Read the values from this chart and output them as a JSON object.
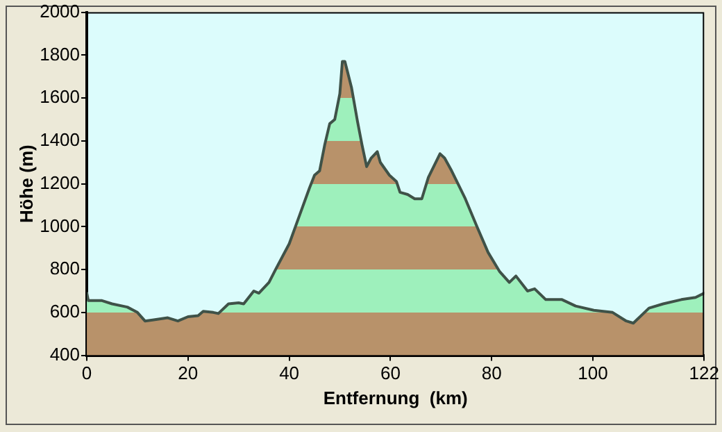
{
  "chart_data": {
    "type": "area",
    "xlabel": "Entfernung  (km)",
    "ylabel": "Höhe (m)",
    "xlim": [
      0,
      122
    ],
    "xticks": [
      0,
      20,
      40,
      60,
      80,
      100,
      122
    ],
    "ylim": [
      400,
      2000
    ],
    "yticks": [
      400,
      600,
      800,
      1000,
      1200,
      1400,
      1600,
      1800,
      2000
    ],
    "grid": false,
    "legend": false,
    "marker": "none",
    "line_style": "solid",
    "series": [
      {
        "color": "#3f5248",
        "x": [
          0,
          0.3,
          3,
          5,
          8,
          10,
          11.5,
          13,
          16,
          18,
          20,
          22,
          23,
          25,
          26,
          28,
          30,
          31,
          33,
          34,
          36,
          37.3,
          40,
          42,
          44,
          45,
          46,
          47,
          48,
          49,
          50,
          50.5,
          51,
          52.3,
          53.5,
          54.4,
          55.3,
          56.2,
          57.4,
          58,
          59.8,
          61.2,
          61.9,
          63.4,
          64.8,
          66.2,
          67.5,
          69.8,
          70.7,
          72.1,
          74.8,
          77.1,
          79.3,
          81.6,
          83.5,
          84.8,
          87.1,
          88.5,
          90.7,
          93.9,
          96.6,
          100.2,
          103.9,
          106.6,
          108,
          111.1,
          113.9,
          117.5,
          120.3,
          122
        ],
        "values": [
          690,
          655,
          655,
          640,
          625,
          600,
          560,
          565,
          575,
          560,
          580,
          585,
          605,
          600,
          595,
          640,
          645,
          640,
          700,
          690,
          740,
          800,
          920,
          1050,
          1180,
          1240,
          1260,
          1380,
          1480,
          1500,
          1620,
          1770,
          1770,
          1650,
          1490,
          1380,
          1280,
          1320,
          1350,
          1300,
          1240,
          1210,
          1160,
          1150,
          1130,
          1130,
          1230,
          1340,
          1320,
          1260,
          1130,
          1000,
          880,
          790,
          740,
          770,
          700,
          710,
          660,
          660,
          630,
          610,
          600,
          560,
          550,
          620,
          640,
          660,
          670,
          690
        ]
      }
    ]
  }
}
